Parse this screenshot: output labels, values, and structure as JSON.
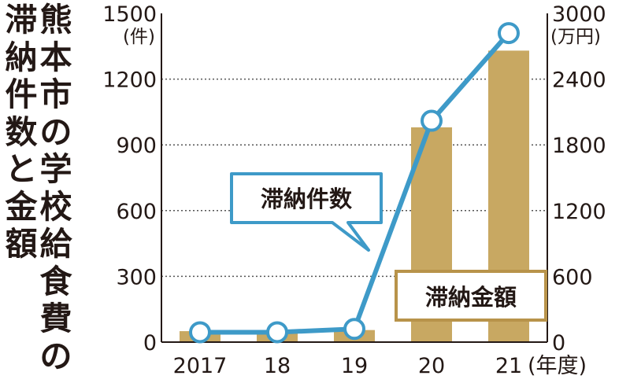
{
  "chart_data": {
    "type": "bar+line",
    "title": "熊本市の学校給食費の",
    "subtitle": "滞納件数と金額",
    "categories": [
      "2017",
      "18",
      "19",
      "20",
      "21"
    ],
    "x_axis_suffix": "(年度)",
    "left_axis": {
      "unit": "(件)",
      "ylim": [
        0,
        1500
      ],
      "ticks": [
        0,
        300,
        600,
        900,
        1200,
        1500
      ]
    },
    "right_axis": {
      "unit": "(万円)",
      "ylim": [
        0,
        3000
      ],
      "ticks": [
        0,
        600,
        1200,
        1800,
        2400,
        3000
      ]
    },
    "series": [
      {
        "name": "滞納金額",
        "kind": "bar",
        "axis": "right",
        "color": "#c8a862",
        "values": [
          100,
          110,
          110,
          1960,
          2660
        ]
      },
      {
        "name": "滞納件数",
        "kind": "line",
        "axis": "left",
        "color": "#3e9ac8",
        "values": [
          45,
          45,
          60,
          1010,
          1410
        ]
      }
    ],
    "grid": true
  }
}
